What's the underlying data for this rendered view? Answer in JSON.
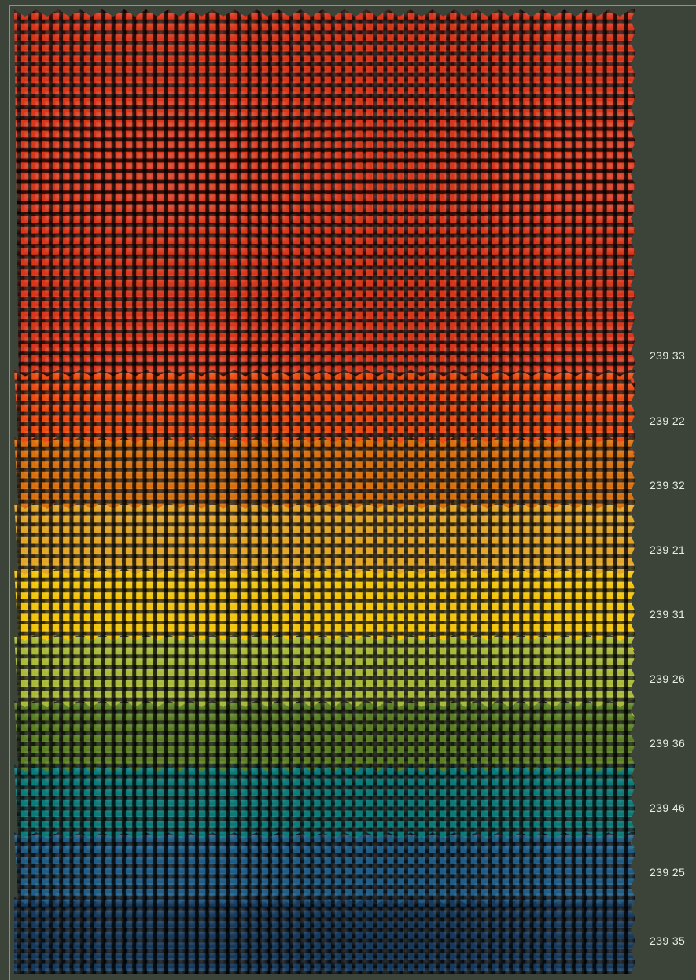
{
  "background_color": "#3c4439",
  "swatches": [
    {
      "label": "239 33",
      "color": "#d8361a"
    },
    {
      "label": "239 22",
      "color": "#ec4c12"
    },
    {
      "label": "239 32",
      "color": "#d8700e"
    },
    {
      "label": "239 21",
      "color": "#e2a628"
    },
    {
      "label": "239 31",
      "color": "#f2c40c"
    },
    {
      "label": "239 26",
      "color": "#aab93a"
    },
    {
      "label": "239 36",
      "color": "#5b7f25"
    },
    {
      "label": "239 46",
      "color": "#0c7a78"
    },
    {
      "label": "239 25",
      "color": "#1f5c86"
    },
    {
      "label": "239 35",
      "color": "#173a5c"
    }
  ]
}
